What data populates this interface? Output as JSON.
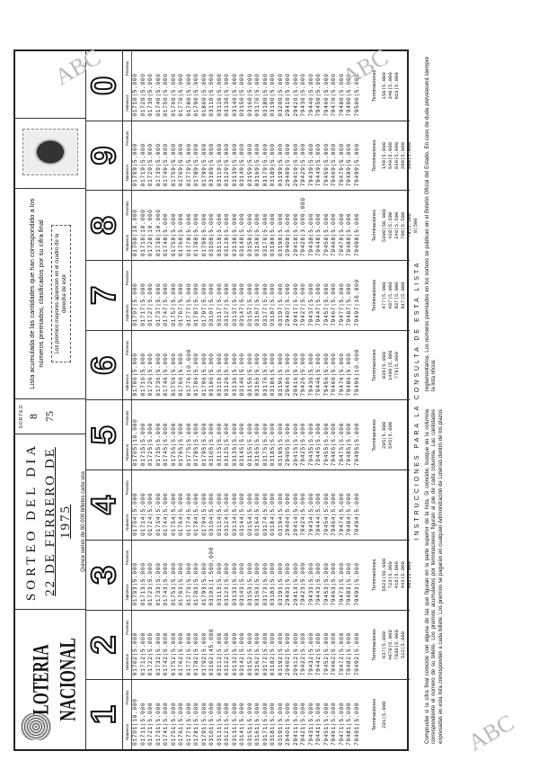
{
  "header": {
    "brand": "LOTERIA NACIONAL",
    "draw_title": "SORTEO DEL DIA",
    "draw_date": "22 DE FERRERO DE 1975",
    "draw_note": "Quince series de 60.000 billetes cada una",
    "sorteo_label": "SORTEO",
    "sorteo_num": "8",
    "sorteo_year": "75",
    "notice": "Lista acumulada de las cantidades que han correspondido a los números premiados, clasificados por su cifra final",
    "notice_box": "Los premios mayores aparecen en el cuadro de la derecha de este"
  },
  "labels": {
    "numero": "Números",
    "pesetas": "Pesetas",
    "terminaciones": "Terminaciones"
  },
  "columns": [
    {
      "digit": "1",
      "rows": [
        "01701|10.000",
        "01711|5.000",
        "01721|5.000",
        "01731|5.000",
        "01741|5.000",
        "01751|5.000",
        "01761|5.000",
        "01771|5.000",
        "01781|5.000",
        "01791|5.000",
        "03101|5.000",
        "03111|5.000",
        "03121|5.000",
        "03131|5.000",
        "03141|5.000",
        "03151|5.000",
        "03161|5.000",
        "03171|5.000",
        "03181|5.000",
        "03191|5.000",
        "29401|5.000",
        "29411|5.000",
        "79421|5.000",
        "79431|5.000",
        "79441|5.000",
        "79451|5.000",
        "79461|5.000",
        "79471|5.000",
        "79481|5.000",
        "79491|5.000"
      ],
      "term": [
        "201|5.000"
      ]
    },
    {
      "digit": "2",
      "rows": [
        "01702|5.000",
        "01712|5.000",
        "01722|5.000",
        "01732|5.000",
        "01742|5.000",
        "01752|5.000",
        "01762|5.000",
        "01772|5.000",
        "01782|5.000",
        "01792|5.000",
        "03102|45.000",
        "03112|5.000",
        "03122|5.000",
        "03132|5.000",
        "03142|5.000",
        "03152|5.000",
        "03162|5.000",
        "03172|5.000",
        "03182|5.000",
        "03192|5.000",
        "29402|5.000",
        "29412|5.000",
        "79422|5.000",
        "79432|5.000",
        "79442|5.000",
        "79452|5.000",
        "79462|5.000",
        "79472|5.000",
        "79482|5.000",
        "79492|5.000"
      ],
      "term": [
        "637|5.000",
        "4670|5.000",
        "7830|5.000",
        "512|5.000"
      ]
    },
    {
      "digit": "3",
      "rows": [
        "01703|5.000",
        "01713|5.000",
        "01723|5.000",
        "01733|5.000",
        "01743|5.000",
        "01753|5.000",
        "01763|5.000",
        "01773|5.000",
        "01783|5.000",
        "01793|5.000",
        "03103|1.500.000",
        "03113|5.000",
        "03123|5.000",
        "03133|5.000",
        "03143|5.000",
        "03153|5.000",
        "03163|5.000",
        "03173|5.000",
        "03183|5.000",
        "03193|5.000",
        "29403|5.000",
        "29413|5.000",
        "79423|5.000",
        "79433|5.000",
        "79443|5.000",
        "79453|5.000",
        "79463|5.000",
        "79473|5.000",
        "79483|5.000",
        "79493|5.000"
      ],
      "term": [
        "5623|50.000",
        "723|5.000",
        "416|5.000",
        "443|5.000",
        "992|5.000"
      ]
    },
    {
      "digit": "4",
      "rows": [
        "01704|5.000",
        "01714|5.000",
        "01724|5.000",
        "01734|5.000",
        "01744|5.000",
        "01754|5.000",
        "01764|5.000",
        "01774|5.000",
        "01784|5.000",
        "01794|5.000",
        "03104|5.000",
        "03114|5.000",
        "03124|5.000",
        "03134|5.000",
        "03144|5.000",
        "03154|5.000",
        "03164|5.000",
        "03174|5.000",
        "03184|5.000",
        "03194|5.000",
        "29404|5.000",
        "29414|5.000",
        "79424|5.000",
        "79434|5.000",
        "79444|5.000",
        "79454|5.000",
        "79464|5.000",
        "79474|5.000",
        "79484|5.000",
        "79494|5.000"
      ],
      "term": []
    },
    {
      "digit": "5",
      "rows": [
        "01705|10.000",
        "01715|5.000",
        "01725|5.000",
        "01735|5.000",
        "01745|5.000",
        "01755|5.000",
        "01765|5.000",
        "01775|5.000",
        "01785|5.000",
        "01795|5.000",
        "03105|5.000",
        "03115|5.000",
        "03125|5.000",
        "03135|5.000",
        "03145|5.000",
        "03155|5.000",
        "03165|5.000",
        "03175|5.000",
        "03185|5.000",
        "03195|5.000",
        "29405|5.000",
        "29415|5.000",
        "79425|5.000",
        "79435|5.000",
        "79445|5.000",
        "79455|5.000",
        "79465|5.000",
        "79475|5.000",
        "79485|5.000",
        "79495|5.000"
      ],
      "term": [
        "205|5.000",
        "545|5.000"
      ]
    },
    {
      "digit": "6",
      "rows": [
        "01706|5.000",
        "01716|5.000",
        "01726|5.000",
        "01736|5.000",
        "01746|5.000",
        "01756|5.000",
        "01766|5.000",
        "01776|10.000",
        "01786|5.000",
        "01796|5.000",
        "03106|5.000",
        "03116|5.000",
        "03126|5.000",
        "03136|5.000",
        "03146|5.000",
        "03156|5.000",
        "03166|5.000",
        "03176|5.000",
        "03186|5.000",
        "03196|5.000",
        "29406|5.000",
        "29416|5.000",
        "79426|5.000",
        "79436|5.000",
        "79446|5.000",
        "79456|5.000",
        "79466|5.000",
        "79476|5.000",
        "79486|5.000",
        "79496|10.000"
      ],
      "term": [
        "836|5.000",
        "1406|5.000",
        "776|5.000"
      ]
    },
    {
      "digit": "7",
      "rows": [
        "01707|5.000",
        "01717|5.000",
        "01727|5.000",
        "01737|5.000",
        "01747|5.000",
        "01757|5.000",
        "01767|5.000",
        "01777|5.000",
        "01787|5.000",
        "01797|5.000",
        "03107|5.000",
        "03117|5.000",
        "03127|5.000",
        "03137|5.000",
        "03147|5.000",
        "03157|5.000",
        "03167|5.000",
        "03177|5.000",
        "03187|5.000",
        "03197|5.000",
        "29407|5.000",
        "29417|5.000",
        "79427|5.000",
        "79437|5.000",
        "79447|5.000",
        "79457|5.000",
        "79467|5.000",
        "79477|5.000",
        "79487|5.000",
        "79497|10.000"
      ],
      "term": [
        "477|5.000",
        "487|5.000",
        "937|5.000",
        "817|5.000"
      ]
    },
    {
      "digit": "8",
      "rows": [
        "01708|10.000",
        "01718|10.000",
        "01728|10.000",
        "01738|10.000",
        "01748|5.000",
        "01758|5.000",
        "01768|5.000",
        "01778|5.000",
        "01788|5.000",
        "01798|5.000",
        "03108|5.000",
        "03118|5.000",
        "03128|5.000",
        "03138|5.000",
        "03148|5.000",
        "03158|5.000",
        "03168|5.000",
        "03178|5.000",
        "03188|5.000",
        "03198|5.000",
        "29408|5.000",
        "29418|5.000",
        "79428|3.000.000",
        "79438|5.000",
        "79448|5.000",
        "79458|5.000",
        "79468|5.000",
        "79478|5.000",
        "79488|5.000",
        "79498|5.000"
      ],
      "term": [
        "5308|50.000",
        "428|5.500",
        "248|5.500",
        "708|5.500",
        "78|5.500",
        "8|500"
      ]
    },
    {
      "digit": "9",
      "rows": [
        "01709|5.000",
        "01719|5.000",
        "01729|5.000",
        "01739|5.000",
        "01749|5.000",
        "01759|5.000",
        "01769|5.000",
        "01779|5.000",
        "01789|5.000",
        "01799|5.000",
        "03109|5.000",
        "03119|5.000",
        "03129|5.000",
        "03139|5.000",
        "03149|5.000",
        "03159|5.000",
        "03169|5.000",
        "03179|5.000",
        "03189|5.000",
        "03199|5.000",
        "29409|5.000",
        "29419|5.000",
        "79429|5.000",
        "79439|5.000",
        "79449|5.000",
        "79459|5.000",
        "79469|5.000",
        "79479|5.000",
        "79489|5.000",
        "79499|5.000"
      ],
      "term": [
        "149|5.000",
        "549|5.000",
        "839|5.000",
        "209|5.000",
        "989|5.000"
      ]
    },
    {
      "digit": "0",
      "rows": [
        "01710|5.000",
        "01720|5.000",
        "01730|5.000",
        "01740|5.000",
        "01750|5.000",
        "01760|5.000",
        "01770|5.000",
        "01780|5.000",
        "01790|5.000",
        "01800|5.000",
        "03110|5.000",
        "03120|5.000",
        "03130|5.000",
        "03140|5.000",
        "03150|5.000",
        "03160|5.000",
        "03170|5.000",
        "03180|5.000",
        "03190|5.000",
        "03200|5.000",
        "29410|5.000",
        "29420|5.000",
        "79430|5.000",
        "79440|5.000",
        "79450|5.000",
        "79460|5.000",
        "79470|5.000",
        "79480|5.000",
        "79490|5.000",
        "79500|5.000"
      ],
      "term": [
        "150|5.000",
        "340|5.000",
        "910|5.000"
      ]
    }
  ],
  "instructions": {
    "title": "INSTRUCCIONES PARA LA CONSULTA DE ESTA LISTA",
    "text": "Compruebe si la cifra final coincide con alguna de las que figuran en la parte superior de la lista. Si coincide, busque en la columna correspondiente el número de su billete. Los premios acumulados por terminaciones figuran al pie de cada columna. Las cantidades expresadas en esta lista corresponden a cada billete. Los premios se pagarán en cualquier Administración de Loterías dentro de los plazos reglamentarios. Los números premiados en los sorteos se publican en el Boletín Oficial del Estado. En caso de duda prevalecerá siempre la lista oficial."
  },
  "watermark": "ABC"
}
